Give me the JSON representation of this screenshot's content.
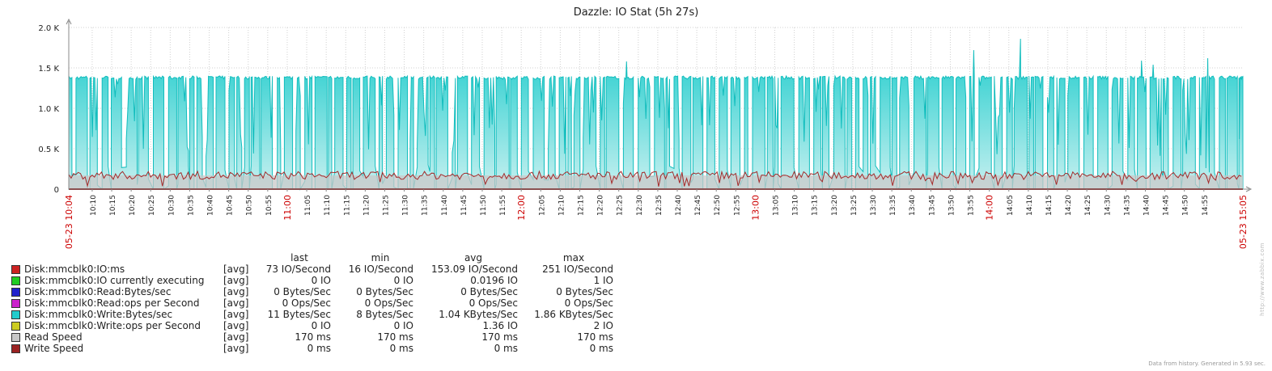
{
  "chart_data": {
    "type": "area",
    "title": "Dazzle: IO Stat (5h 27s)",
    "y_ticks": [
      "0",
      "0.5 K",
      "1.0 K",
      "1.5 K",
      "2.0 K"
    ],
    "ylim": [
      0,
      2000
    ],
    "xlim_minutes": [
      0,
      301
    ],
    "x_start_label": "05-23 10:04",
    "x_end_label": "05-23 15:05",
    "x_tick_labels": [
      "10:10",
      "10:15",
      "10:20",
      "10:25",
      "10:30",
      "10:35",
      "10:40",
      "10:45",
      "10:50",
      "10:55",
      "11:00",
      "11:05",
      "11:10",
      "11:15",
      "11:20",
      "11:25",
      "11:30",
      "11:35",
      "11:40",
      "11:45",
      "11:50",
      "11:55",
      "12:00",
      "12:05",
      "12:10",
      "12:15",
      "12:20",
      "12:25",
      "12:30",
      "12:35",
      "12:40",
      "12:45",
      "12:50",
      "12:55",
      "13:00",
      "13:05",
      "13:10",
      "13:15",
      "13:20",
      "13:25",
      "13:30",
      "13:35",
      "13:40",
      "13:45",
      "13:50",
      "13:55",
      "14:00",
      "14:05",
      "14:10",
      "14:15",
      "14:20",
      "14:25",
      "14:30",
      "14:35",
      "14:40",
      "14:45",
      "14:50",
      "14:55"
    ],
    "x_tick_hour_labels": [
      "11:00",
      "12:00",
      "13:00",
      "14:00"
    ],
    "grid": true,
    "series_colors": {
      "write_bytes": "#1ACBCB",
      "read_speed": "#C8C8C8",
      "io_ms": "#A52A2A",
      "write_speed": "#8B1A1A"
    },
    "write_bytes_profile": {
      "high_level": 1380,
      "low_level": 0,
      "spikes": [
        {
          "t": 143,
          "v": 1580
        },
        {
          "t": 232,
          "v": 1720
        },
        {
          "t": 244,
          "v": 1860
        },
        {
          "t": 275,
          "v": 1590
        },
        {
          "t": 278,
          "v": 1540
        },
        {
          "t": 292,
          "v": 1620
        }
      ]
    },
    "read_speed_level": 170,
    "io_ms_range": [
      16,
      251
    ],
    "legend_headers": [
      "last",
      "min",
      "avg",
      "max"
    ],
    "legend": [
      {
        "name": "Disk:mmcblk0:IO:ms",
        "color": "#CC2222",
        "func": "[avg]",
        "last": "73 IO/Second",
        "min": "16 IO/Second",
        "avg": "153.09 IO/Second",
        "max": "251 IO/Second"
      },
      {
        "name": "Disk:mmcblk0:IO currently executing",
        "color": "#22CC22",
        "func": "[avg]",
        "last": "0 IO",
        "min": "0 IO",
        "avg": "0.0196 IO",
        "max": "1 IO"
      },
      {
        "name": "Disk:mmcblk0:Read:Bytes/sec",
        "color": "#2222CC",
        "func": "[avg]",
        "last": "0 Bytes/Sec",
        "min": "0 Bytes/Sec",
        "avg": "0 Bytes/Sec",
        "max": "0 Bytes/Sec"
      },
      {
        "name": "Disk:mmcblk0:Read:ops per Second",
        "color": "#CC22CC",
        "func": "[avg]",
        "last": "0 Ops/Sec",
        "min": "0 Ops/Sec",
        "avg": "0 Ops/Sec",
        "max": "0 Ops/Sec"
      },
      {
        "name": "Disk:mmcblk0:Write:Bytes/sec",
        "color": "#22CCCC",
        "func": "[avg]",
        "last": "11 Bytes/Sec",
        "min": "8 Bytes/Sec",
        "avg": "1.04 KBytes/Sec",
        "max": "1.86 KBytes/Sec"
      },
      {
        "name": "Disk:mmcblk0:Write:ops per Second",
        "color": "#CCCC22",
        "func": "[avg]",
        "last": "0 IO",
        "min": "0 IO",
        "avg": "1.36 IO",
        "max": "2 IO"
      },
      {
        "name": "Read Speed",
        "color": "#C8C8C8",
        "func": "[avg]",
        "last": "170 ms",
        "min": "170 ms",
        "avg": "170 ms",
        "max": "170 ms"
      },
      {
        "name": "Write Speed",
        "color": "#9B2222",
        "func": "[avg]",
        "last": "0 ms",
        "min": "0 ms",
        "avg": "0 ms",
        "max": "0 ms"
      }
    ]
  },
  "footer_note": "Data from history. Generated in 5.93 sec.",
  "watermark": "http://www.zabbix.com"
}
